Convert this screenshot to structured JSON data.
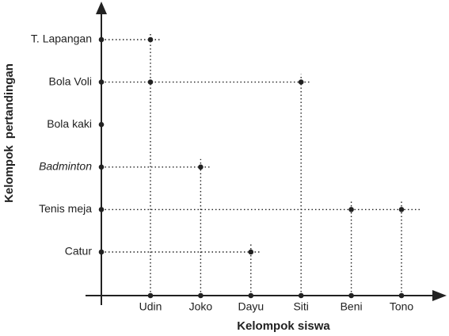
{
  "axis_labels": {
    "y": "Kelompok  pertandingan",
    "x": "Kelompok siswa"
  },
  "sports": [
    {
      "label": "T. Lapangan"
    },
    {
      "label": "Bola Voli"
    },
    {
      "label": "Bola kaki"
    },
    {
      "label": "Badminton",
      "italic": true
    },
    {
      "label": "Tenis meja"
    },
    {
      "label": "Catur"
    }
  ],
  "students": [
    "Udin",
    "Joko",
    "Dayu",
    "Siti",
    "Beni",
    "Tono"
  ],
  "pairs": [
    [
      0,
      0
    ],
    [
      0,
      1
    ],
    [
      3,
      1
    ],
    [
      1,
      3
    ],
    [
      4,
      4
    ],
    [
      5,
      4
    ],
    [
      2,
      5
    ]
  ]
}
